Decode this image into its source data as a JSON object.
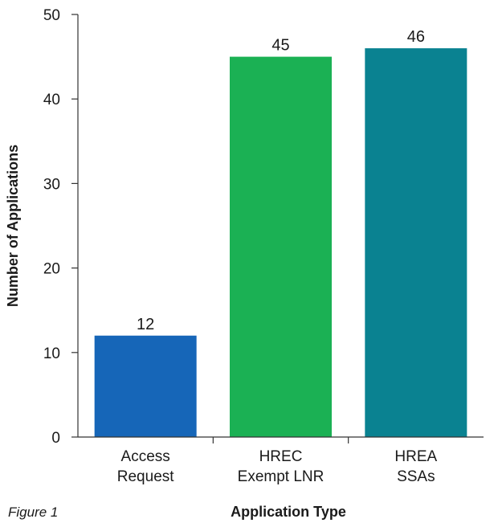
{
  "chart_data": {
    "type": "bar",
    "categories": [
      [
        "Access",
        "Request"
      ],
      [
        "HREC",
        "Exempt LNR"
      ],
      [
        "HREA",
        "SSAs"
      ]
    ],
    "values": [
      12,
      45,
      46
    ],
    "colors": [
      "#1666b8",
      "#1bb154",
      "#0a8291"
    ],
    "xlabel": "Application Type",
    "ylabel": "Number of Applications",
    "ylim": [
      0,
      50
    ],
    "yticks": [
      0,
      10,
      20,
      30,
      40,
      50
    ],
    "grid": false,
    "data_labels": true
  },
  "caption": "Figure 1"
}
